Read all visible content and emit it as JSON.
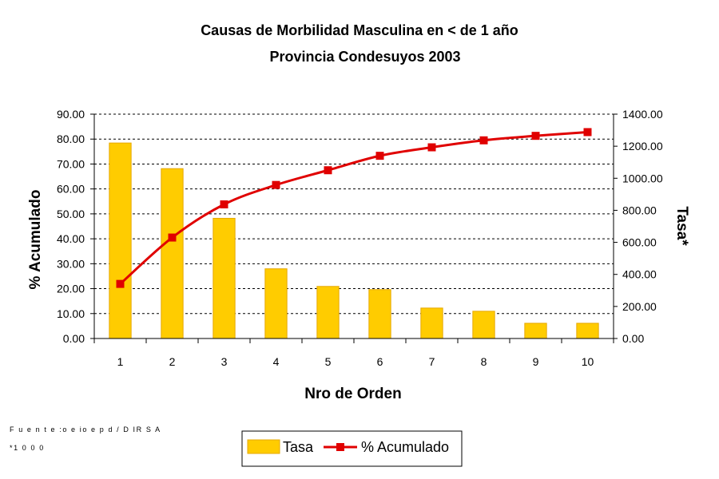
{
  "footnotes": {
    "source": "F u e n t e :o e io e p d / D IR S A",
    "rate_unit": "*1 0 0 0"
  },
  "chart_data": {
    "type": "bar",
    "title": "Causas de Morbilidad Masculina en < de 1 año",
    "subtitle": "Provincia Condesuyos 2003",
    "xlabel": "Nro de Orden",
    "ylabel_left": "% Acumulado",
    "ylabel_right": "Tasa*",
    "categories": [
      "1",
      "2",
      "3",
      "4",
      "5",
      "6",
      "7",
      "8",
      "9",
      "10"
    ],
    "left_axis": {
      "ylim": [
        0,
        90
      ],
      "ticks": [
        "0.00",
        "10.00",
        "20.00",
        "30.00",
        "40.00",
        "50.00",
        "60.00",
        "70.00",
        "80.00",
        "90.00"
      ]
    },
    "right_axis": {
      "ylim": [
        0,
        1400
      ],
      "ticks": [
        "0.00",
        "200.00",
        "400.00",
        "600.00",
        "800.00",
        "1000.00",
        "1200.00",
        "1400.00"
      ]
    },
    "grid": "horizontal dashed",
    "legend_position": "bottom",
    "series": [
      {
        "name": "Tasa",
        "type": "bar",
        "axis": "right",
        "color": "#FFCC00",
        "edge_color": "#E6A800",
        "values": [
          1220,
          1060,
          750,
          435,
          325,
          305,
          190,
          170,
          95,
          95
        ]
      },
      {
        "name": "% Acumulado",
        "type": "line",
        "axis": "left",
        "color": "#E00000",
        "marker": "square",
        "values": [
          21.9,
          40.5,
          53.8,
          61.6,
          67.5,
          73.3,
          76.7,
          79.5,
          81.3,
          82.8
        ]
      }
    ]
  }
}
